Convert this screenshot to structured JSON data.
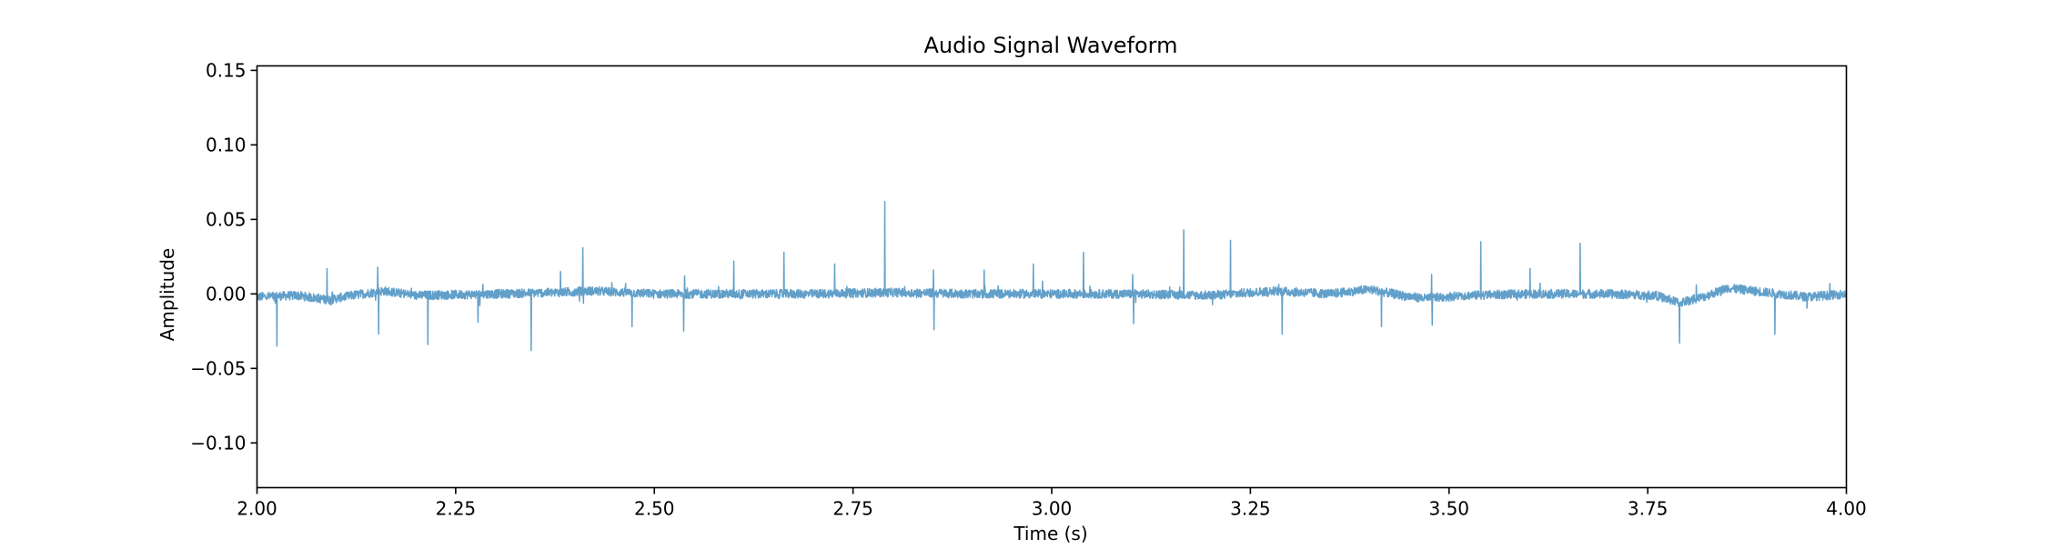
{
  "chart_data": {
    "type": "line",
    "title": "Audio Signal Waveform",
    "xlabel": "Time (s)",
    "ylabel": "Amplitude",
    "xlim": [
      2.0,
      4.0
    ],
    "ylim": [
      -0.13,
      0.153
    ],
    "grid": false,
    "x_ticks": [
      2.0,
      2.25,
      2.5,
      2.75,
      3.0,
      3.25,
      3.5,
      3.75,
      4.0
    ],
    "x_tick_labels": [
      "2.00",
      "2.25",
      "2.50",
      "2.75",
      "3.00",
      "3.25",
      "3.50",
      "3.75",
      "4.00"
    ],
    "y_ticks": [
      -0.1,
      -0.05,
      0.0,
      0.05,
      0.1,
      0.15
    ],
    "y_tick_labels": [
      "−0.10",
      "−0.05",
      "0.00",
      "0.05",
      "0.10",
      "0.15"
    ],
    "series": [
      {
        "color": "#1f77b4",
        "opacity": 0.7,
        "noise_amplitude": 0.003,
        "baseline_drift": [
          [
            2.0,
            -0.002
          ],
          [
            2.05,
            -0.001
          ],
          [
            2.09,
            -0.004
          ],
          [
            2.12,
            -0.001
          ],
          [
            2.16,
            0.002
          ],
          [
            2.2,
            -0.001
          ],
          [
            2.3,
            0.0
          ],
          [
            2.38,
            0.001
          ],
          [
            2.42,
            0.002
          ],
          [
            2.5,
            0.0
          ],
          [
            2.6,
            0.0
          ],
          [
            2.7,
            0.0
          ],
          [
            2.8,
            0.001
          ],
          [
            2.9,
            0.0
          ],
          [
            3.0,
            0.0
          ],
          [
            3.1,
            0.0
          ],
          [
            3.2,
            -0.001
          ],
          [
            3.28,
            0.002
          ],
          [
            3.35,
            0.0
          ],
          [
            3.4,
            0.003
          ],
          [
            3.44,
            -0.001
          ],
          [
            3.47,
            -0.003
          ],
          [
            3.52,
            -0.001
          ],
          [
            3.6,
            0.0
          ],
          [
            3.7,
            0.0
          ],
          [
            3.76,
            -0.001
          ],
          [
            3.79,
            -0.006
          ],
          [
            3.82,
            -0.002
          ],
          [
            3.85,
            0.004
          ],
          [
            3.9,
            0.001
          ],
          [
            3.95,
            -0.002
          ],
          [
            4.0,
            0.0
          ]
        ],
        "spikes": [
          [
            2.025,
            -0.035
          ],
          [
            2.088,
            0.017
          ],
          [
            2.152,
            0.018
          ],
          [
            2.153,
            -0.027
          ],
          [
            2.215,
            -0.034
          ],
          [
            2.278,
            -0.019
          ],
          [
            2.345,
            -0.038
          ],
          [
            2.382,
            0.015
          ],
          [
            2.41,
            0.031
          ],
          [
            2.472,
            -0.022
          ],
          [
            2.537,
            -0.025
          ],
          [
            2.538,
            0.012
          ],
          [
            2.6,
            0.022
          ],
          [
            2.663,
            0.028
          ],
          [
            2.727,
            0.02
          ],
          [
            2.79,
            0.062
          ],
          [
            2.851,
            0.016
          ],
          [
            2.852,
            -0.024
          ],
          [
            2.915,
            0.016
          ],
          [
            2.977,
            0.02
          ],
          [
            3.04,
            0.028
          ],
          [
            3.102,
            0.013
          ],
          [
            3.103,
            -0.02
          ],
          [
            3.166,
            0.043
          ],
          [
            3.225,
            0.036
          ],
          [
            3.29,
            -0.027
          ],
          [
            3.415,
            -0.022
          ],
          [
            3.478,
            0.013
          ],
          [
            3.479,
            -0.021
          ],
          [
            3.54,
            0.035
          ],
          [
            3.602,
            0.017
          ],
          [
            3.665,
            0.034
          ],
          [
            3.79,
            -0.033
          ],
          [
            3.91,
            -0.027
          ]
        ]
      }
    ]
  }
}
